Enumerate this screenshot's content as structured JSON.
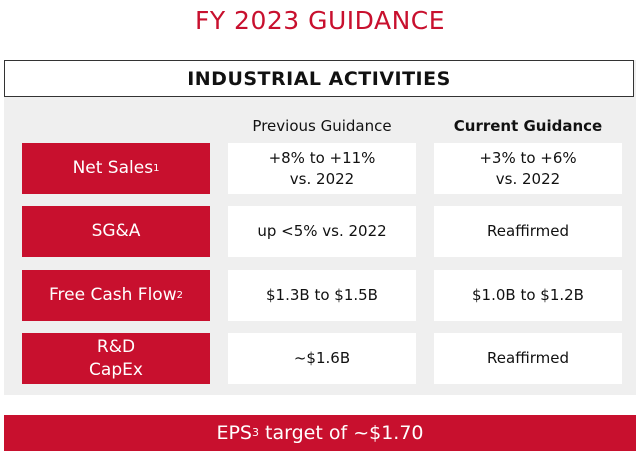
{
  "title": "FY 2023 GUIDANCE",
  "section_header": "INDUSTRIAL ACTIVITIES",
  "columns": {
    "previous": "Previous Guidance",
    "current": "Current Guidance"
  },
  "rows": [
    {
      "label": "Net Sales",
      "footnote": "1",
      "previous": "+8% to +11%\nvs. 2022",
      "current": "+3% to +6%\nvs. 2022"
    },
    {
      "label": "SG&A",
      "footnote": "",
      "previous": "up <5% vs. 2022",
      "current": "Reaffirmed"
    },
    {
      "label": "Free Cash Flow",
      "footnote": "2",
      "previous": "$1.3B to $1.5B",
      "current": "$1.0B to $1.2B"
    },
    {
      "label_line1": "R&D",
      "label_line2": "CapEx",
      "previous": "~$1.6B",
      "current": "Reaffirmed"
    }
  ],
  "footer": {
    "prefix": "EPS",
    "footnote": "3",
    "suffix": " target of ~$1.70"
  },
  "colors": {
    "accent": "#c8102e",
    "panel": "#efefef"
  }
}
